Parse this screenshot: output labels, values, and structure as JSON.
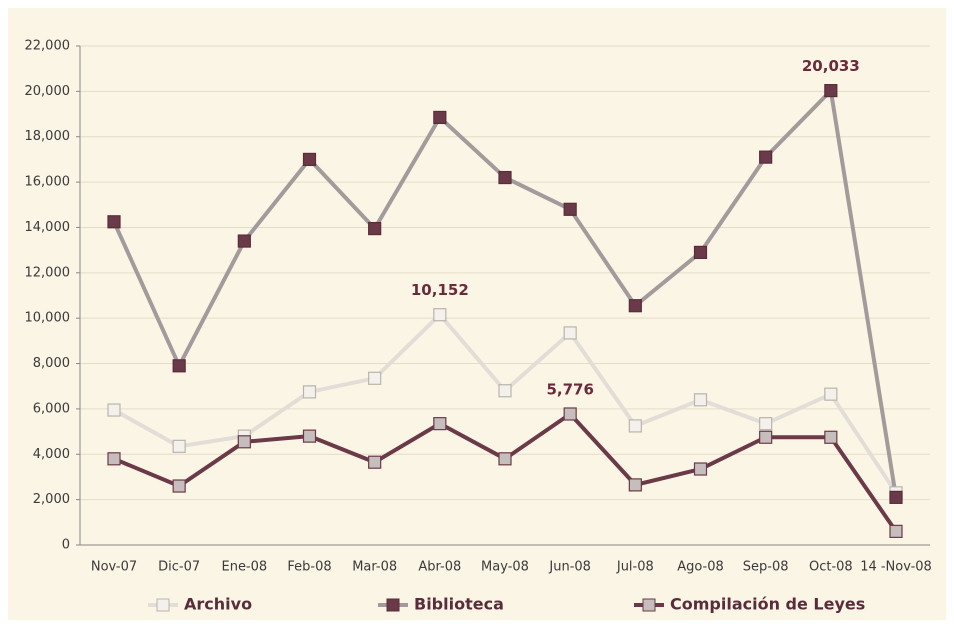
{
  "chart_data": {
    "type": "line",
    "categories": [
      "Nov-07",
      "Dic-07",
      "Ene-08",
      "Feb-08",
      "Mar-08",
      "Abr-08",
      "May-08",
      "Jun-08",
      "Jul-08",
      "Ago-08",
      "Sep-08",
      "Oct-08",
      "14 -Nov-08"
    ],
    "series": [
      {
        "name": "Archivo",
        "color": "#e2ddd7",
        "marker_color": "#f4f1ec",
        "marker_edge": "#b9b4ae",
        "values": [
          5950,
          4350,
          4800,
          6750,
          7350,
          10152,
          6800,
          9350,
          5250,
          6400,
          5350,
          6650,
          2300
        ],
        "value_labels": [
          null,
          null,
          null,
          null,
          null,
          "10,152",
          null,
          null,
          null,
          null,
          null,
          null,
          null
        ]
      },
      {
        "name": "Biblioteca",
        "color": "#a39a9b",
        "marker_color": "#6b3a48",
        "marker_edge": "#5a2c3a",
        "values": [
          14250,
          7900,
          13400,
          17000,
          13950,
          18850,
          16200,
          14800,
          10550,
          12900,
          17100,
          20033,
          2100
        ],
        "value_labels": [
          null,
          null,
          null,
          null,
          null,
          null,
          null,
          null,
          null,
          null,
          null,
          "20,033",
          null
        ]
      },
      {
        "name": "Compilación de Leyes",
        "color": "#6b3a48",
        "marker_color": "#c6bebd",
        "marker_edge": "#6b3a48",
        "values": [
          3800,
          2600,
          4550,
          4800,
          3650,
          5350,
          3800,
          5776,
          2650,
          3350,
          4750,
          4750,
          600
        ],
        "value_labels": [
          null,
          null,
          null,
          null,
          null,
          null,
          null,
          "5,776",
          null,
          null,
          null,
          null,
          null
        ]
      }
    ],
    "ylim": [
      0,
      22000
    ],
    "yticks": [
      0,
      {
        "value": 2000,
        "label": "2,000"
      },
      {
        "value": 4000,
        "label": "4,000"
      },
      {
        "value": 6000,
        "label": "6,000"
      },
      {
        "value": 8000,
        "label": "8,000"
      },
      {
        "value": 10000,
        "label": "10,000"
      },
      {
        "value": 12000,
        "label": "12,000"
      },
      {
        "value": 14000,
        "label": "14,000"
      },
      {
        "value": 16000,
        "label": "16,000"
      },
      {
        "value": 18000,
        "label": "18,000"
      },
      {
        "value": 20000,
        "label": "20,000"
      },
      {
        "value": 22000,
        "label": "22,000"
      }
    ],
    "grid": true,
    "legend": "bottom"
  }
}
